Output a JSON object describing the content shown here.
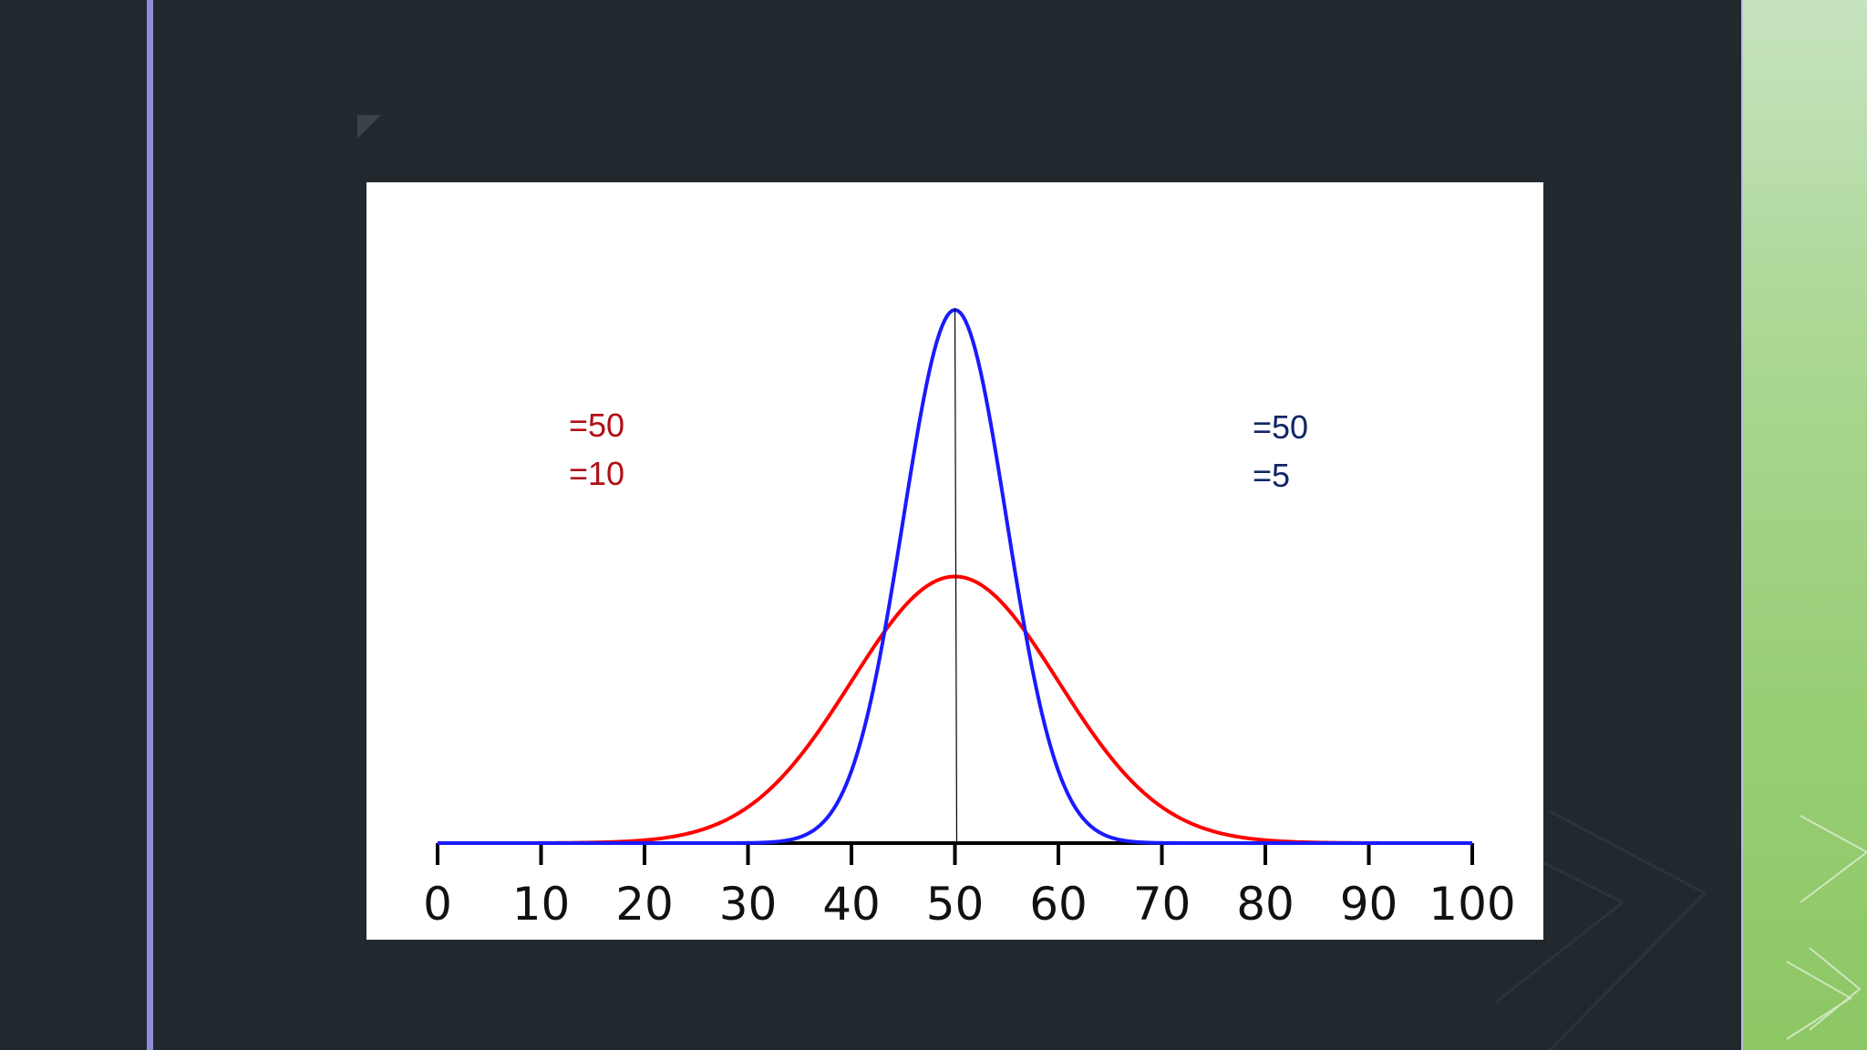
{
  "colors": {
    "background": "#21292e",
    "accent_rule": "#8c8fd6",
    "red_series": "#ff0000",
    "blue_series": "#1a1aff",
    "red_label": "#b01015",
    "blue_label": "#122567",
    "axis": "#000000"
  },
  "annotations": {
    "red_mean": "=50",
    "red_sd": "=10",
    "blue_mean": "=50",
    "blue_sd": "=5"
  },
  "chart_data": {
    "type": "line",
    "title": "",
    "xlabel": "",
    "ylabel": "",
    "xlim": [
      0,
      100
    ],
    "x_ticks": [
      0,
      10,
      20,
      30,
      40,
      50,
      60,
      70,
      80,
      90,
      100
    ],
    "tick_labels": [
      "0",
      "10",
      "20",
      "30",
      "40",
      "50",
      "60",
      "70",
      "80",
      "90",
      "100"
    ],
    "grid": false,
    "legend": "none",
    "mean_line_x": 50,
    "series": [
      {
        "color": "#ff0000",
        "mean": 50,
        "sd": 10,
        "peak": 0.0399
      },
      {
        "color": "#1a1aff",
        "mean": 50,
        "sd": 5,
        "peak": 0.0798
      }
    ]
  }
}
